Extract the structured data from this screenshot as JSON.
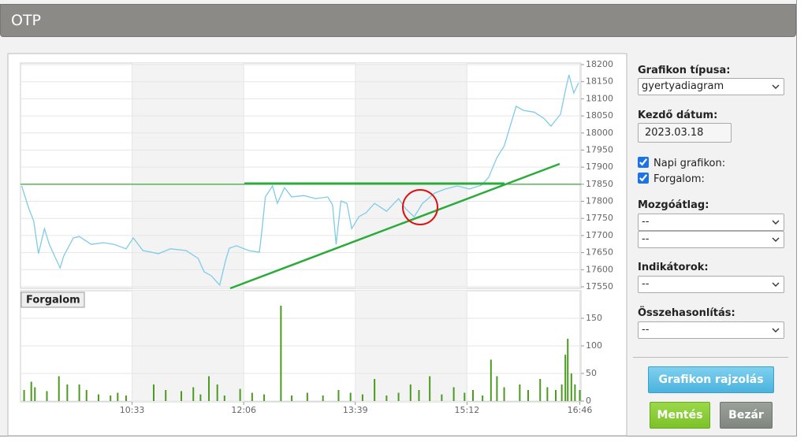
{
  "header": {
    "title": "OTP"
  },
  "chart_data": [
    {
      "type": "line",
      "color": "#7fcbe8",
      "grid": true,
      "xlim": [
        "09:00",
        "16:47"
      ],
      "ylim": [
        17550,
        18200
      ],
      "yticks": [
        17550,
        17600,
        17650,
        17700,
        17750,
        17800,
        17850,
        17900,
        17950,
        18000,
        18050,
        18100,
        18150,
        18200
      ],
      "reference_level": 17850,
      "reference_color": "#3aa63a",
      "x": [
        "09:01",
        "09:07",
        "09:11",
        "09:15",
        "09:20",
        "09:24",
        "09:33",
        "09:36",
        "09:44",
        "09:49",
        "09:59",
        "10:09",
        "10:18",
        "10:28",
        "10:34",
        "10:42",
        "10:55",
        "11:05",
        "11:18",
        "11:28",
        "11:33",
        "11:39",
        "11:46",
        "11:51",
        "11:54",
        "12:00",
        "12:10",
        "12:19",
        "12:21",
        "12:24",
        "12:30",
        "12:34",
        "12:40",
        "12:46",
        "12:56",
        "13:06",
        "13:16",
        "13:20",
        "13:23",
        "13:27",
        "13:32",
        "13:36",
        "13:42",
        "13:48",
        "13:55",
        "14:05",
        "14:15",
        "14:21",
        "14:28",
        "14:35",
        "14:45",
        "14:54",
        "15:04",
        "15:14",
        "15:24",
        "15:30",
        "15:37",
        "15:43",
        "15:48",
        "15:53",
        "15:59",
        "16:08",
        "16:16",
        "16:22",
        "16:30",
        "16:34",
        "16:37",
        "16:41",
        "16:45"
      ],
      "values": [
        17845,
        17778,
        17743,
        17647,
        17720,
        17674,
        17605,
        17640,
        17693,
        17697,
        17674,
        17679,
        17674,
        17661,
        17693,
        17656,
        17647,
        17661,
        17656,
        17633,
        17594,
        17582,
        17555,
        17628,
        17663,
        17670,
        17656,
        17651,
        17709,
        17813,
        17845,
        17794,
        17840,
        17813,
        17817,
        17808,
        17813,
        17790,
        17674,
        17801,
        17794,
        17720,
        17755,
        17767,
        17794,
        17771,
        17808,
        17778,
        17755,
        17794,
        17824,
        17836,
        17845,
        17836,
        17847,
        17870,
        17928,
        17962,
        18020,
        18078,
        18066,
        18061,
        18043,
        18020,
        18055,
        18124,
        18170,
        18117,
        18147
      ]
    },
    {
      "type": "bar",
      "title": "Forgalom",
      "color": "#4a9b1f",
      "grid": true,
      "xlim": [
        "09:00",
        "16:47"
      ],
      "ylim": [
        0,
        200
      ],
      "yticks": [
        0,
        50,
        100,
        150
      ],
      "xticks": [
        "10:33",
        "12:06",
        "13:39",
        "15:12",
        "16:46"
      ],
      "x": [
        "09:03",
        "09:09",
        "09:12",
        "09:22",
        "09:32",
        "09:39",
        "09:49",
        "09:55",
        "10:05",
        "10:15",
        "10:21",
        "10:28",
        "10:51",
        "11:01",
        "11:14",
        "11:24",
        "11:30",
        "11:37",
        "11:44",
        "11:50",
        "12:03",
        "12:13",
        "12:23",
        "12:37",
        "12:46",
        "12:59",
        "13:12",
        "13:25",
        "13:35",
        "13:45",
        "13:55",
        "14:05",
        "14:15",
        "14:25",
        "14:32",
        "14:41",
        "14:51",
        "15:01",
        "15:10",
        "15:17",
        "15:25",
        "15:32",
        "15:37",
        "15:43",
        "15:56",
        "16:03",
        "16:13",
        "16:19",
        "16:26",
        "16:31",
        "16:34",
        "16:36",
        "16:39",
        "16:42",
        "16:46"
      ],
      "values": [
        20,
        35,
        25,
        18,
        45,
        30,
        30,
        20,
        12,
        10,
        15,
        10,
        30,
        20,
        18,
        25,
        12,
        45,
        30,
        10,
        22,
        15,
        12,
        173,
        10,
        15,
        10,
        20,
        15,
        12,
        40,
        10,
        15,
        30,
        20,
        45,
        12,
        25,
        15,
        20,
        10,
        75,
        45,
        25,
        30,
        20,
        40,
        25,
        20,
        30,
        84,
        113,
        50,
        30,
        20
      ]
    }
  ],
  "form": {
    "chart_type": {
      "label": "Grafikon típusa:",
      "value": "gyertyadiagram"
    },
    "start_date": {
      "label": "Kezdő dátum:",
      "value": "2023.03.18"
    },
    "daily_chart": {
      "label": "Napi grafikon:",
      "checked": true
    },
    "volume": {
      "label": "Forgalom:",
      "checked": true
    },
    "moving_average": {
      "label": "Mozgóátlag:",
      "values": [
        "--",
        "--"
      ]
    },
    "indicators": {
      "label": "Indikátorok:",
      "value": "--"
    },
    "comparison": {
      "label": "Összehasonlítás:",
      "value": "--"
    },
    "buttons": {
      "draw": "Grafikon rajzolás",
      "save": "Mentés",
      "close": "Bezár"
    }
  }
}
